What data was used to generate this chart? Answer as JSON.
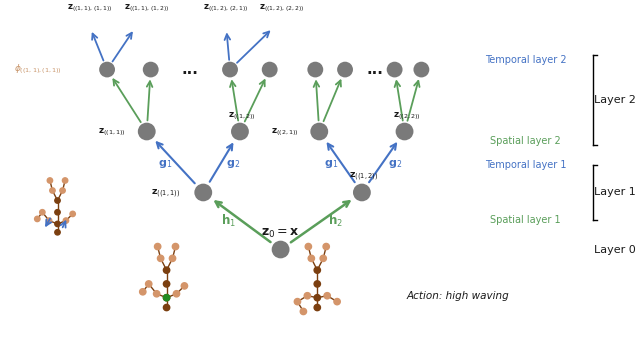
{
  "action_label": "Action: high waving",
  "z0_label": "$\\mathbf{z}_0 = \\mathbf{x}$",
  "h1_label": "$\\mathbf{h}_1$",
  "h2_label": "$\\mathbf{h}_2$",
  "g1_label": "$\\mathbf{g}_1$",
  "g2_label": "$\\mathbf{g}_2$",
  "layer0_label": "Layer 0",
  "layer1_label": "Layer 1",
  "layer2_label": "Layer 2",
  "spatial1_label": "Spatial layer 1",
  "temporal1_label": "Temporal layer 1",
  "spatial2_label": "Spatial layer 2",
  "temporal2_label": "Temporal layer 2",
  "node_color": "#7a7a7a",
  "green_color": "#5a9e5a",
  "blue_color": "#4472c4",
  "brown_dark": "#7b3f10",
  "brown_light": "#d4956a",
  "text_color": "#1a1a1a",
  "bg_color": "#ffffff"
}
